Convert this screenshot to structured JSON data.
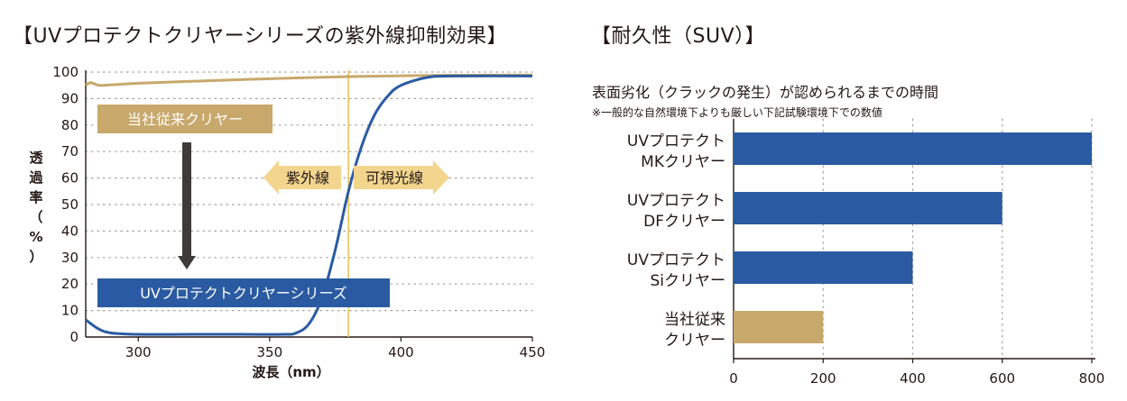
{
  "colors": {
    "blue": "#2a5ba2",
    "gold": "#c8a86b",
    "arrow_fill": "#f3d58e",
    "dark_arrow": "#3e3a39",
    "uv_line": "#e9c25d"
  },
  "left_title": "【UVプロテクトクリヤーシリーズの紫外線抑制効果】",
  "right_title": "【耐久性（SUV）】",
  "right_subtitle": "表面劣化（クラックの発生）が認められるまでの時間",
  "right_note": "※一般的な自然環境下よりも厳しい下記試験環境下での数値",
  "chart_data": [
    {
      "type": "line",
      "title": "UVプロテクトクリヤーシリーズの紫外線抑制効果",
      "xlabel": "波長（nm）",
      "ylabel": "透過率（%）",
      "xlim": [
        280,
        450
      ],
      "ylim": [
        0,
        100
      ],
      "x_ticks": [
        300,
        350,
        400,
        450
      ],
      "y_ticks": [
        0,
        10,
        20,
        30,
        40,
        50,
        60,
        70,
        80,
        90,
        100
      ],
      "grid": "horizontal dotted",
      "vertical_marker": 380,
      "series": [
        {
          "name": "当社従来クリヤー",
          "x": [
            280,
            282,
            285,
            290,
            300,
            320,
            340,
            360,
            380,
            400,
            420,
            450
          ],
          "y": [
            95,
            96,
            95,
            95.2,
            95.8,
            96.5,
            97.2,
            97.8,
            98.3,
            98.6,
            98.8,
            98.9
          ]
        },
        {
          "name": "UVプロテクトクリヤーシリーズ",
          "x": [
            280,
            285,
            290,
            300,
            320,
            340,
            355,
            360,
            365,
            370,
            375,
            380,
            385,
            390,
            395,
            400,
            410,
            420,
            450
          ],
          "y": [
            6.5,
            3,
            1.5,
            1,
            1,
            1,
            1,
            1.5,
            5,
            15,
            33,
            55,
            72,
            84,
            91,
            95,
            98,
            98.5,
            98.5
          ]
        }
      ],
      "annotations": {
        "uv": "紫外線",
        "visible": "可視光線"
      }
    },
    {
      "type": "bar",
      "orientation": "horizontal",
      "title": "耐久性（SUV）",
      "categories": [
        {
          "line1": "UVプロテクト",
          "line2": "MKクリヤー"
        },
        {
          "line1": "UVプロテクト",
          "line2": "DFクリヤー"
        },
        {
          "line1": "UVプロテクト",
          "line2": "Siクリヤー"
        },
        {
          "line1": "当社従来",
          "line2": "クリヤー"
        }
      ],
      "values": [
        800,
        600,
        400,
        200
      ],
      "bar_colors": [
        "#2a5ba2",
        "#2a5ba2",
        "#2a5ba2",
        "#c8a86b"
      ],
      "xlim": [
        0,
        800
      ],
      "x_ticks": [
        0,
        200,
        400,
        600,
        800
      ],
      "grid": "vertical dotted"
    }
  ]
}
